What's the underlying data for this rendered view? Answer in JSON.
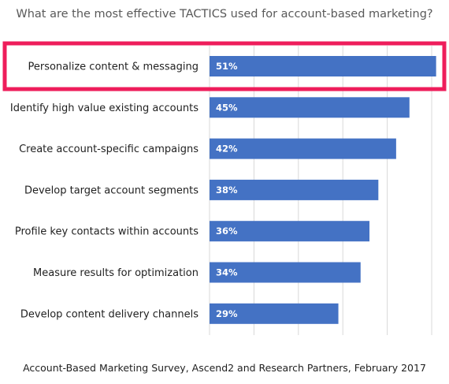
{
  "chart_data": {
    "type": "bar",
    "orientation": "horizontal",
    "title": "What are the most effective TACTICS used for account-based marketing?",
    "categories": [
      "Personalize content & messaging",
      "Identify high value existing accounts",
      "Create account-specific campaigns",
      "Develop target account segments",
      "Profile key contacts within accounts",
      "Measure results for optimization",
      "Develop content delivery channels"
    ],
    "values": [
      51,
      45,
      42,
      38,
      36,
      34,
      29
    ],
    "value_labels": [
      "51%",
      "45%",
      "42%",
      "38%",
      "36%",
      "34%",
      "29%"
    ],
    "xlim": [
      0,
      50
    ],
    "grid": true,
    "highlighted_category": "Personalize content & messaging",
    "bar_color": "#4472c4",
    "highlight_color": "#ee1d5b"
  },
  "footer": {
    "source": "Account-Based Marketing Survey, Ascend2 and Research Partners, February 2017"
  }
}
